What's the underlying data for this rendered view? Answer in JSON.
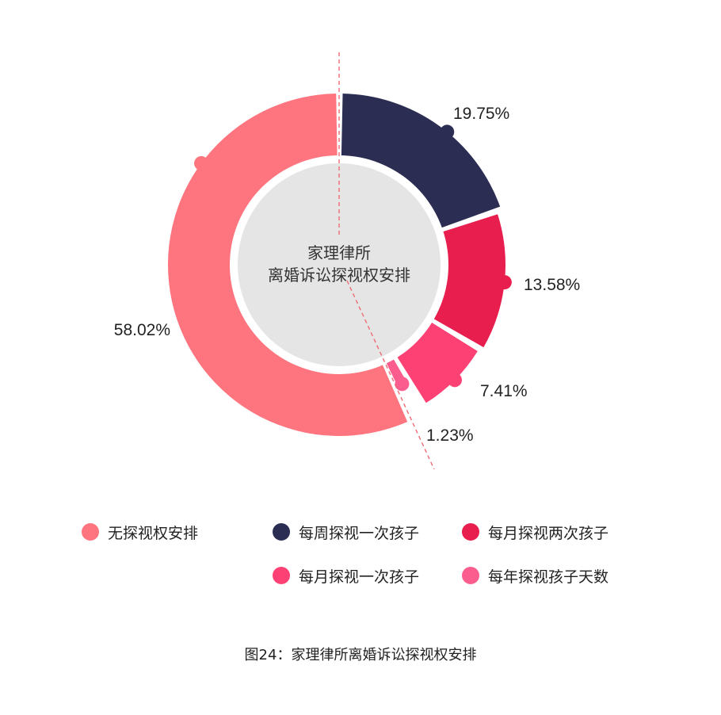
{
  "chart_data": {
    "type": "pie",
    "variant": "donut",
    "center_label": [
      "家理律所",
      "离婚诉讼探视权安排"
    ],
    "caption": "图24：家理律所离婚诉讼探视权安排",
    "legend_position": "bottom",
    "slices": [
      {
        "label": "每周探视一次孩子",
        "value": 19.75,
        "value_label": "19.75%",
        "color": "#2b2d53"
      },
      {
        "label": "每月探视两次孩子",
        "value": 13.58,
        "value_label": "13.58%",
        "color": "#e81e4e"
      },
      {
        "label": "每月探视一次孩子",
        "value": 7.41,
        "value_label": "7.41%",
        "color": "#fd4174"
      },
      {
        "label": "每年探视孩子天数",
        "value": 1.23,
        "value_label": "1.23%",
        "color": "#fa5d8e"
      },
      {
        "label": "无探视权安排",
        "value": 58.02,
        "value_label": "58.02%",
        "color": "#fe757f"
      }
    ],
    "legend_order": [
      4,
      0,
      1,
      2,
      3
    ]
  }
}
